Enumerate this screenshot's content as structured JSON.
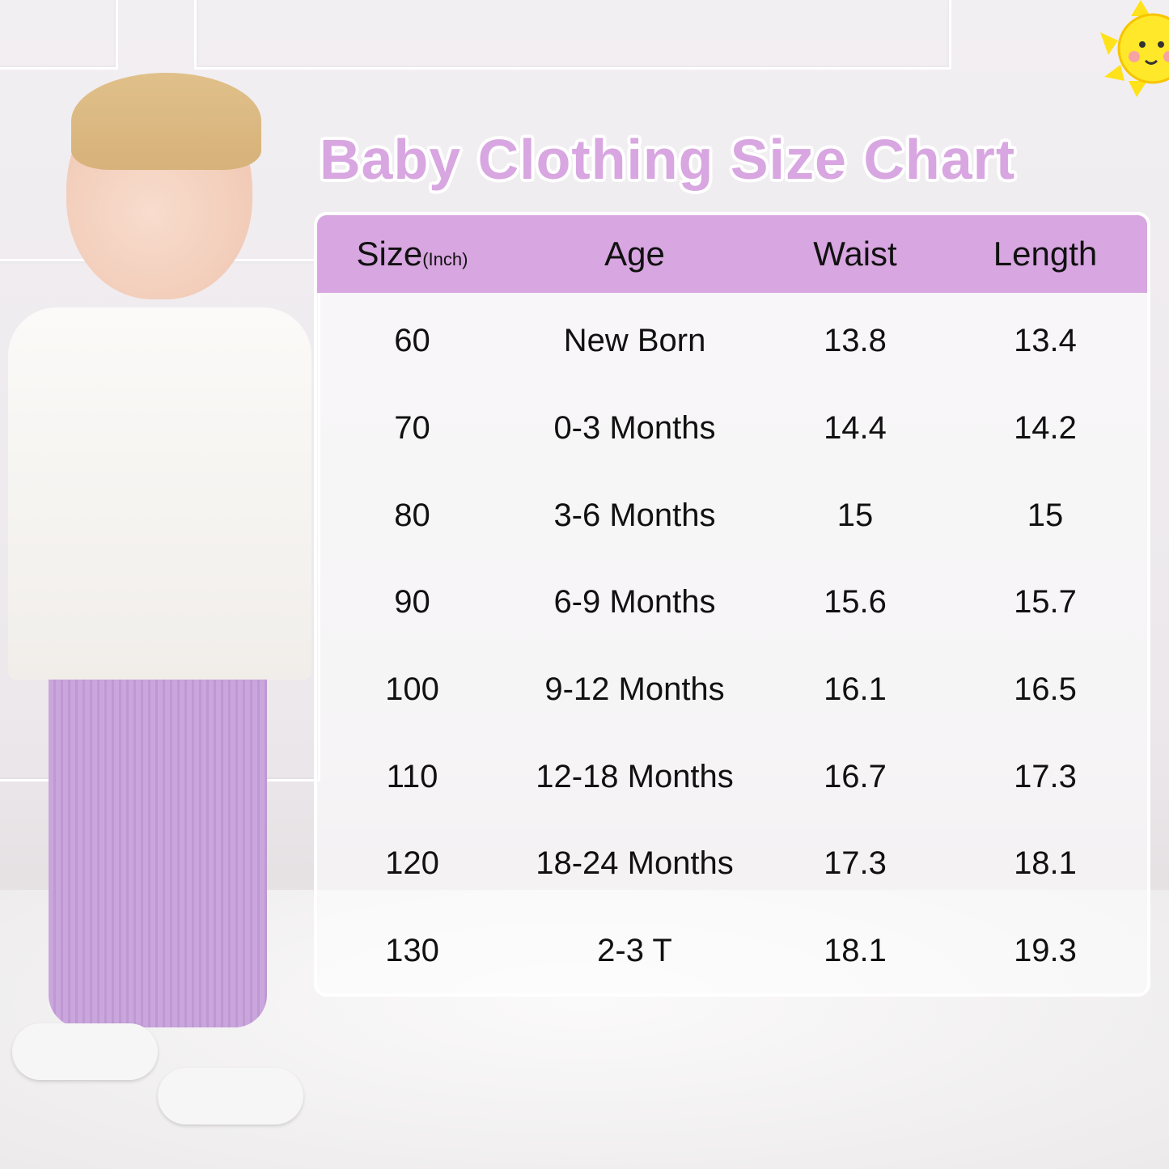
{
  "title": "Baby Clothing Size Chart",
  "colors": {
    "header_bg": "#d8a6e0",
    "title": "#d8a6e0",
    "pants": "#c9a6dc"
  },
  "chart_data": {
    "type": "table",
    "columns": [
      {
        "label": "Size",
        "unit": "(Inch)"
      },
      {
        "label": "Age"
      },
      {
        "label": "Waist"
      },
      {
        "label": "Length"
      }
    ],
    "rows": [
      [
        "60",
        "New Born",
        "13.8",
        "13.4"
      ],
      [
        "70",
        "0-3 Months",
        "14.4",
        "14.2"
      ],
      [
        "80",
        "3-6 Months",
        "15",
        "15"
      ],
      [
        "90",
        "6-9 Months",
        "15.6",
        "15.7"
      ],
      [
        "100",
        "9-12 Months",
        "16.1",
        "16.5"
      ],
      [
        "110",
        "12-18 Months",
        "16.7",
        "17.3"
      ],
      [
        "120",
        "18-24 Months",
        "17.3",
        "18.1"
      ],
      [
        "130",
        "2-3 T",
        "18.1",
        "19.3"
      ]
    ]
  }
}
